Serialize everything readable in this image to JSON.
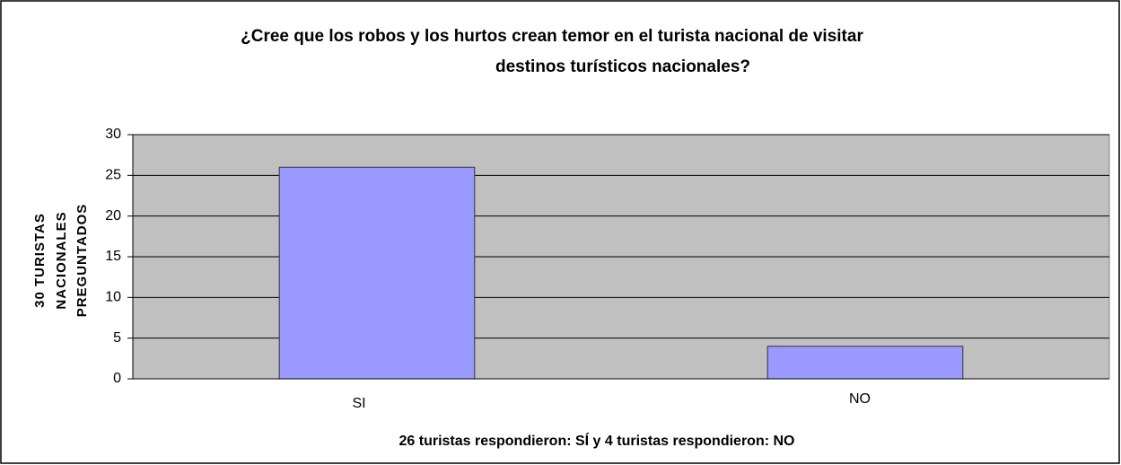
{
  "chart_data": {
    "type": "bar",
    "title": [
      "¿Cree que los robos y los hurtos crean temor en el turista nacional de visitar",
      "destinos turísticos nacionales?"
    ],
    "y_label": [
      "30 TURISTAS",
      "NACIONALES",
      "PREGUNTADOS"
    ],
    "x_label": "26 turistas respondieron: SÍ  y 4 turistas respondieron: NO",
    "categories": [
      "SI",
      "NO"
    ],
    "values": [
      26,
      4
    ],
    "color": "#9999ff",
    "ylim": [
      0,
      30
    ],
    "yticks": [
      0,
      5,
      10,
      15,
      20,
      25,
      30
    ],
    "grid": true
  }
}
